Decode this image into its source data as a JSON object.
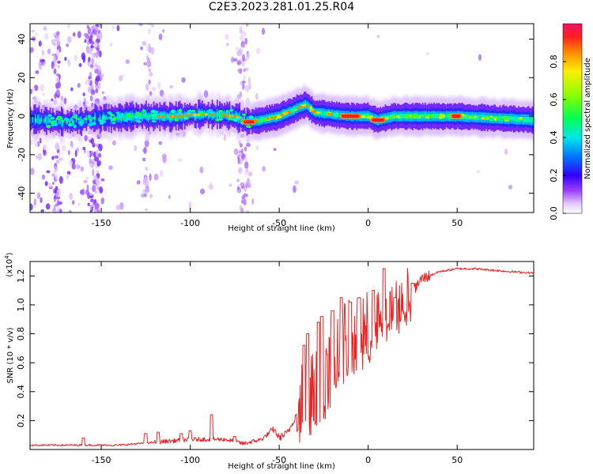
{
  "page_title": "C2E3.2023.281.01.25.R04",
  "chart_data": [
    {
      "type": "heatmap",
      "xlabel": "Height of straight line (km)",
      "ylabel": "Frequency (Hz)",
      "xlim": [
        -190,
        93
      ],
      "ylim": [
        -50,
        48
      ],
      "xticks": [
        -150,
        -100,
        -50,
        0,
        50
      ],
      "yticks": [
        -40,
        -20,
        0,
        20,
        40
      ],
      "colorbar": {
        "label": "Normalized spectral amplitude",
        "range": [
          0.0,
          1.0
        ],
        "ticks": [
          0.0,
          0.2,
          0.4,
          0.6,
          0.8
        ]
      },
      "band_center": [
        [
          -190,
          -2
        ],
        [
          -170,
          -3
        ],
        [
          -150,
          -1
        ],
        [
          -130,
          0
        ],
        [
          -110,
          0
        ],
        [
          -90,
          1
        ],
        [
          -75,
          0
        ],
        [
          -68,
          -3
        ],
        [
          -60,
          -2
        ],
        [
          -50,
          0
        ],
        [
          -40,
          4
        ],
        [
          -35,
          6
        ],
        [
          -30,
          2
        ],
        [
          -20,
          1
        ],
        [
          -10,
          0
        ],
        [
          0,
          0
        ],
        [
          5,
          -2
        ],
        [
          15,
          0
        ],
        [
          30,
          0
        ],
        [
          50,
          0
        ],
        [
          70,
          -1
        ],
        [
          93,
          -2
        ]
      ],
      "peak_segments": [
        {
          "x_start": -15,
          "x_end": -5,
          "y": 0
        },
        {
          "x_start": 2,
          "x_end": 9,
          "y": -2
        },
        {
          "x_start": 47,
          "x_end": 52,
          "y": 0
        },
        {
          "x_start": -70,
          "x_end": -64,
          "y": -3
        }
      ]
    },
    {
      "type": "line",
      "xlabel": "Height of straight line (km)",
      "ylabel": "SNR (10 * v/v)",
      "y_multiplier": "(x10",
      "y_multiplier_exp": "4",
      "y_multiplier_close": ")",
      "xlim": [
        -190,
        93
      ],
      "ylim": [
        0.0,
        1.3
      ],
      "xticks": [
        -150,
        -100,
        -50,
        0,
        50
      ],
      "yticks": [
        0.2,
        0.4,
        0.6,
        0.8,
        1.0,
        1.2
      ],
      "line_color": "#ee2222",
      "trend": [
        [
          -190,
          0.03
        ],
        [
          -160,
          0.03
        ],
        [
          -140,
          0.03
        ],
        [
          -120,
          0.05
        ],
        [
          -100,
          0.07
        ],
        [
          -80,
          0.07
        ],
        [
          -70,
          0.04
        ],
        [
          -60,
          0.07
        ],
        [
          -53,
          0.14
        ],
        [
          -50,
          0.08
        ],
        [
          -45,
          0.12
        ],
        [
          -40,
          0.25
        ],
        [
          -35,
          0.5
        ],
        [
          -30,
          0.5
        ],
        [
          -25,
          0.55
        ],
        [
          -20,
          0.65
        ],
        [
          -15,
          0.78
        ],
        [
          -10,
          0.82
        ],
        [
          -5,
          0.86
        ],
        [
          0,
          0.88
        ],
        [
          10,
          0.9
        ],
        [
          20,
          1.0
        ],
        [
          30,
          1.18
        ],
        [
          40,
          1.23
        ],
        [
          50,
          1.25
        ],
        [
          60,
          1.25
        ],
        [
          70,
          1.24
        ],
        [
          80,
          1.23
        ],
        [
          93,
          1.22
        ]
      ],
      "spikes": [
        [
          -160,
          0.08
        ],
        [
          -125,
          0.11
        ],
        [
          -118,
          0.12
        ],
        [
          -105,
          0.11
        ],
        [
          -100,
          0.13
        ],
        [
          -88,
          0.24
        ],
        [
          -75,
          0.09
        ],
        [
          -36,
          0.72
        ],
        [
          -34,
          0.8
        ],
        [
          -28,
          0.88
        ],
        [
          -26,
          0.92
        ],
        [
          -20,
          0.96
        ],
        [
          -15,
          1.05
        ],
        [
          -10,
          1.02
        ],
        [
          -5,
          1.05
        ],
        [
          3,
          1.1
        ],
        [
          9,
          1.25
        ],
        [
          15,
          1.05
        ],
        [
          25,
          1.15
        ]
      ]
    }
  ]
}
